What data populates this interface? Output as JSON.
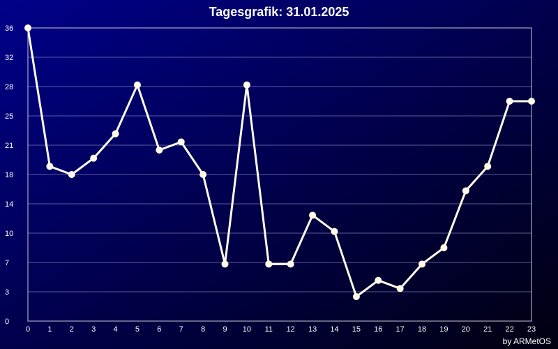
{
  "chart_data": {
    "type": "line",
    "title": "Tagesgrafik: 31.01.2025",
    "xlabel": "",
    "ylabel": "",
    "x": [
      0,
      1,
      2,
      3,
      4,
      5,
      6,
      7,
      8,
      9,
      10,
      11,
      12,
      13,
      14,
      15,
      16,
      17,
      18,
      19,
      20,
      21,
      22,
      23
    ],
    "values": [
      36,
      19,
      18,
      20,
      23,
      29,
      21,
      22,
      18,
      7,
      29,
      7,
      7,
      13,
      11,
      3,
      5,
      4,
      7,
      9,
      16,
      19,
      27,
      27
    ],
    "x_ticks": [
      "0",
      "1",
      "2",
      "3",
      "4",
      "5",
      "6",
      "7",
      "8",
      "9",
      "10",
      "11",
      "12",
      "13",
      "14",
      "15",
      "16",
      "17",
      "18",
      "19",
      "20",
      "21",
      "22",
      "23"
    ],
    "y_ticks": [
      "0",
      "3",
      "7",
      "10",
      "14",
      "18",
      "21",
      "25",
      "28",
      "32",
      "36"
    ],
    "ylim": [
      0,
      36
    ],
    "xlim": [
      0,
      23
    ],
    "grid": true,
    "line_color": "#fffbe8",
    "background_colors": [
      "#00008a",
      "#000010"
    ]
  },
  "credit": "by ARMetOS"
}
